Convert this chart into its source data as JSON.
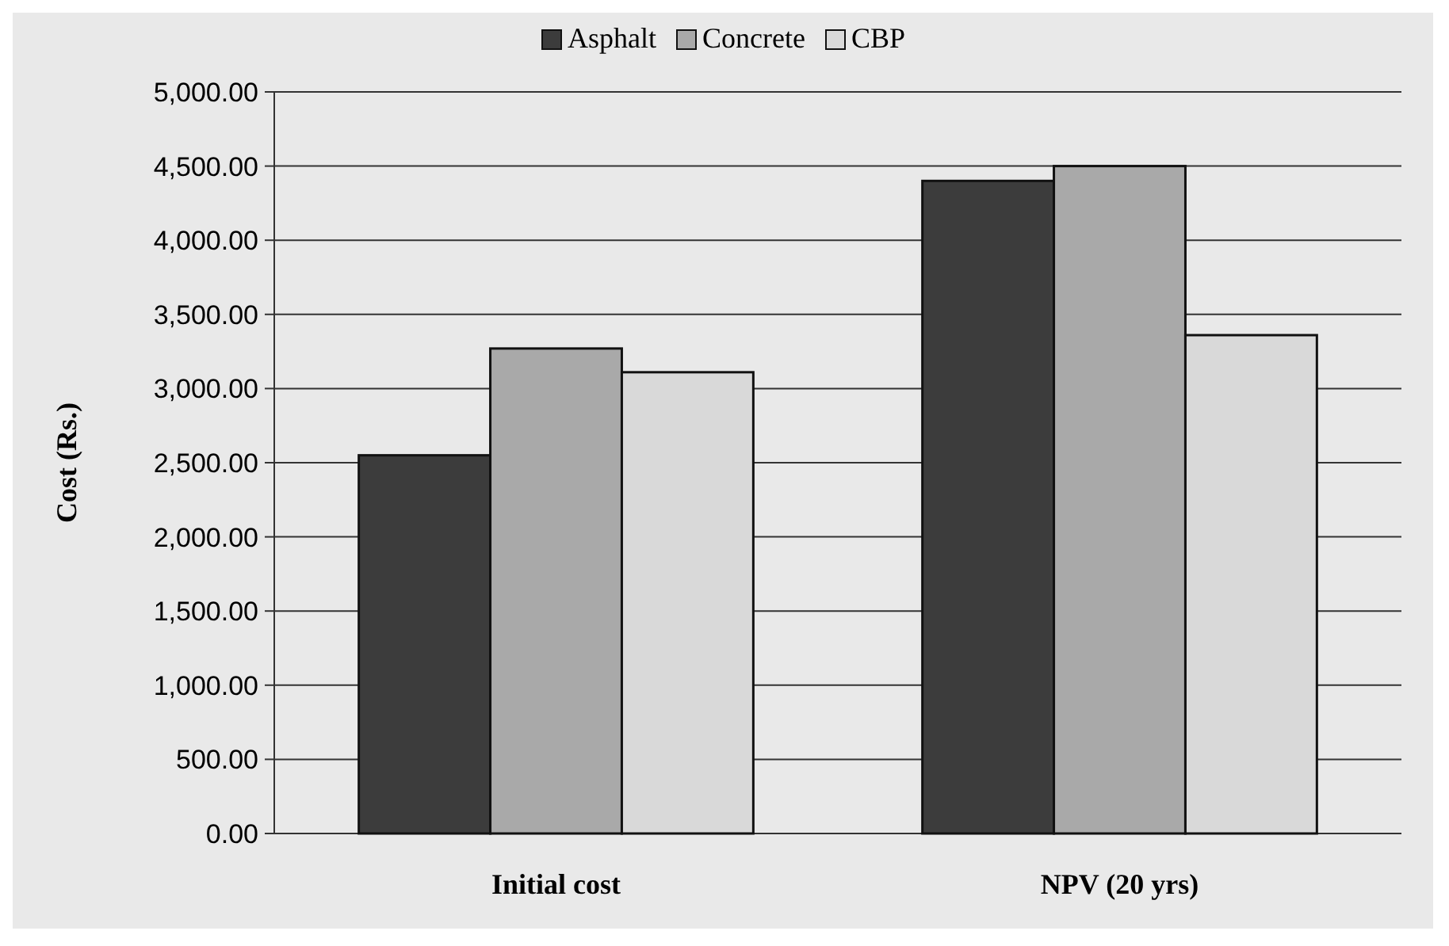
{
  "chart_data": {
    "type": "bar",
    "ylabel": "Cost (Rs.)",
    "categories": [
      "Initial cost",
      "NPV (20 yrs)"
    ],
    "series": [
      {
        "name": "Asphalt",
        "color": "#3c3c3c",
        "values": [
          2550,
          4400
        ]
      },
      {
        "name": "Concrete",
        "color": "#a9a9a9",
        "values": [
          3270,
          4500
        ]
      },
      {
        "name": "CBP",
        "color": "#d9d9d9",
        "values": [
          3110,
          3360
        ]
      }
    ],
    "ylim": [
      0,
      5000
    ],
    "yticks": [
      {
        "value": 0,
        "label": "0.00"
      },
      {
        "value": 500,
        "label": "500.00"
      },
      {
        "value": 1000,
        "label": "1,000.00"
      },
      {
        "value": 1500,
        "label": "1,500.00"
      },
      {
        "value": 2000,
        "label": "2,000.00"
      },
      {
        "value": 2500,
        "label": "2,500.00"
      },
      {
        "value": 3000,
        "label": "3,000.00"
      },
      {
        "value": 3500,
        "label": "3,500.00"
      },
      {
        "value": 4000,
        "label": "4,000.00"
      },
      {
        "value": 4500,
        "label": "4,500.00"
      },
      {
        "value": 5000,
        "label": "5,000.00"
      }
    ],
    "grid": "y",
    "legend": "top"
  }
}
